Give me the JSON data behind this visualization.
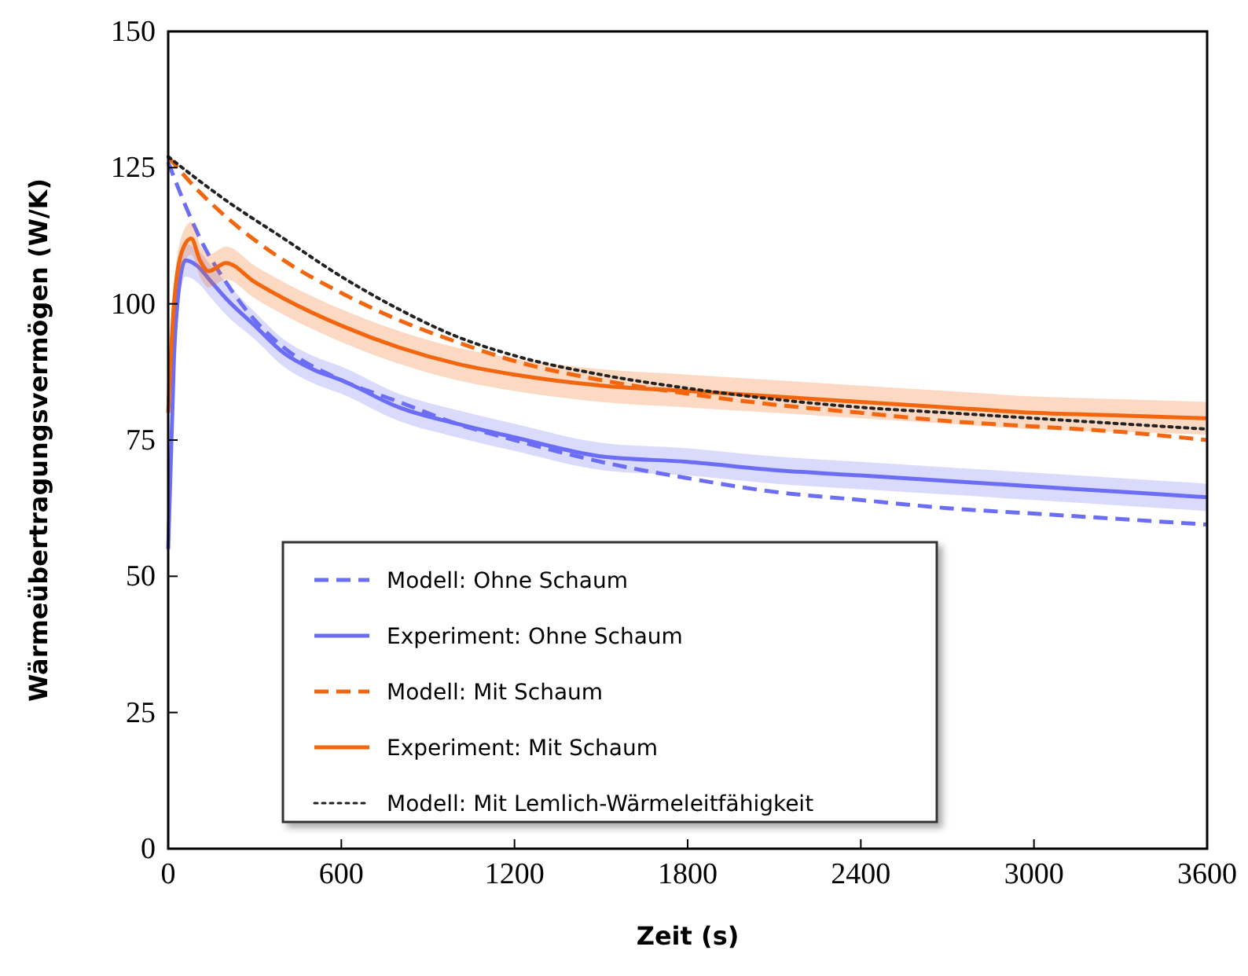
{
  "chart_data": {
    "type": "line",
    "xlabel": "Zeit (s)",
    "ylabel": "Wärmeübertragungsvermögen (W/K)",
    "xlim": [
      0,
      3600
    ],
    "ylim": [
      0,
      150
    ],
    "xticks": [
      0,
      600,
      1200,
      1800,
      2400,
      3000,
      3600
    ],
    "yticks": [
      0,
      25,
      50,
      75,
      100,
      125,
      150
    ],
    "grid": false,
    "legend": "bottom",
    "marker": "none",
    "series": [
      {
        "name": "Modell: Ohne Schaum",
        "color": "#6b6ef5",
        "line_style": "dashed",
        "x": [
          0,
          60,
          120,
          200,
          300,
          400,
          600,
          800,
          1000,
          1200,
          1500,
          1800,
          2100,
          2400,
          2700,
          3000,
          3300,
          3600
        ],
        "values": [
          126,
          118,
          111,
          104,
          97,
          92,
          86,
          82,
          78,
          75,
          71,
          68,
          65.5,
          64,
          62.5,
          61.5,
          60.5,
          59.5
        ]
      },
      {
        "name": "Experiment: Ohne Schaum",
        "color": "#6b6ef5",
        "line_style": "solid",
        "x": [
          0,
          20,
          40,
          60,
          100,
          150,
          200,
          300,
          400,
          500,
          600,
          800,
          1000,
          1200,
          1500,
          1800,
          2100,
          2400,
          2700,
          3000,
          3300,
          3600
        ],
        "values": [
          55,
          90,
          104,
          108,
          107,
          104,
          101,
          96,
          91,
          88,
          86,
          81,
          78,
          75.5,
          72,
          71,
          69.5,
          68.5,
          67.5,
          66.5,
          65.5,
          64.5
        ],
        "lower": [
          53,
          87,
          101,
          105,
          104,
          101,
          98,
          93.5,
          88.5,
          85.5,
          83.5,
          78.5,
          75.5,
          73,
          69.5,
          68.5,
          67,
          66,
          65,
          64,
          63,
          62
        ],
        "upper": [
          57,
          93,
          107,
          111,
          110,
          107,
          104,
          98.5,
          93.5,
          90.5,
          88.5,
          83.5,
          80.5,
          78,
          74.5,
          73.5,
          72,
          71,
          70,
          69,
          68,
          67
        ]
      },
      {
        "name": "Modell: Mit Schaum",
        "color": "#f2660f",
        "line_style": "dashed",
        "x": [
          0,
          100,
          200,
          400,
          600,
          800,
          1000,
          1200,
          1500,
          1800,
          2100,
          2400,
          2700,
          3000,
          3300,
          3600
        ],
        "values": [
          127,
          121,
          116,
          108,
          102,
          97,
          93,
          89.5,
          86,
          83.5,
          81.5,
          80,
          78.5,
          77.5,
          76.5,
          75
        ]
      },
      {
        "name": "Experiment: Mit Schaum",
        "color": "#f2660f",
        "line_style": "solid",
        "x": [
          0,
          20,
          50,
          80,
          110,
          140,
          200,
          300,
          400,
          600,
          800,
          1000,
          1200,
          1500,
          1800,
          2100,
          2400,
          2700,
          3000,
          3300,
          3600
        ],
        "values": [
          80,
          100,
          110,
          112,
          108,
          106,
          107.5,
          104,
          101,
          96,
          92,
          89,
          87,
          85,
          84,
          83,
          82,
          81,
          80,
          79.5,
          79
        ],
        "lower": [
          77,
          97,
          107,
          109,
          105,
          103,
          104.5,
          101,
          98,
          93,
          89,
          86,
          84,
          82,
          81,
          80,
          79,
          78,
          77,
          76.5,
          76
        ],
        "upper": [
          83,
          103,
          113,
          115,
          111,
          109,
          110.5,
          107,
          104,
          99,
          95,
          92,
          90,
          88,
          87,
          86,
          85,
          84,
          83,
          82.5,
          82
        ]
      },
      {
        "name": "Modell: Mit Lemlich-Wärmeleitfähigkeit",
        "color": "#222222",
        "line_style": "dotted",
        "x": [
          0,
          200,
          400,
          600,
          800,
          1000,
          1200,
          1500,
          1800,
          2100,
          2400,
          2700,
          3000,
          3300,
          3600
        ],
        "values": [
          127,
          119,
          112,
          105,
          99,
          94,
          90.5,
          87,
          84.5,
          82.5,
          81,
          80,
          79,
          78,
          77
        ]
      }
    ]
  }
}
